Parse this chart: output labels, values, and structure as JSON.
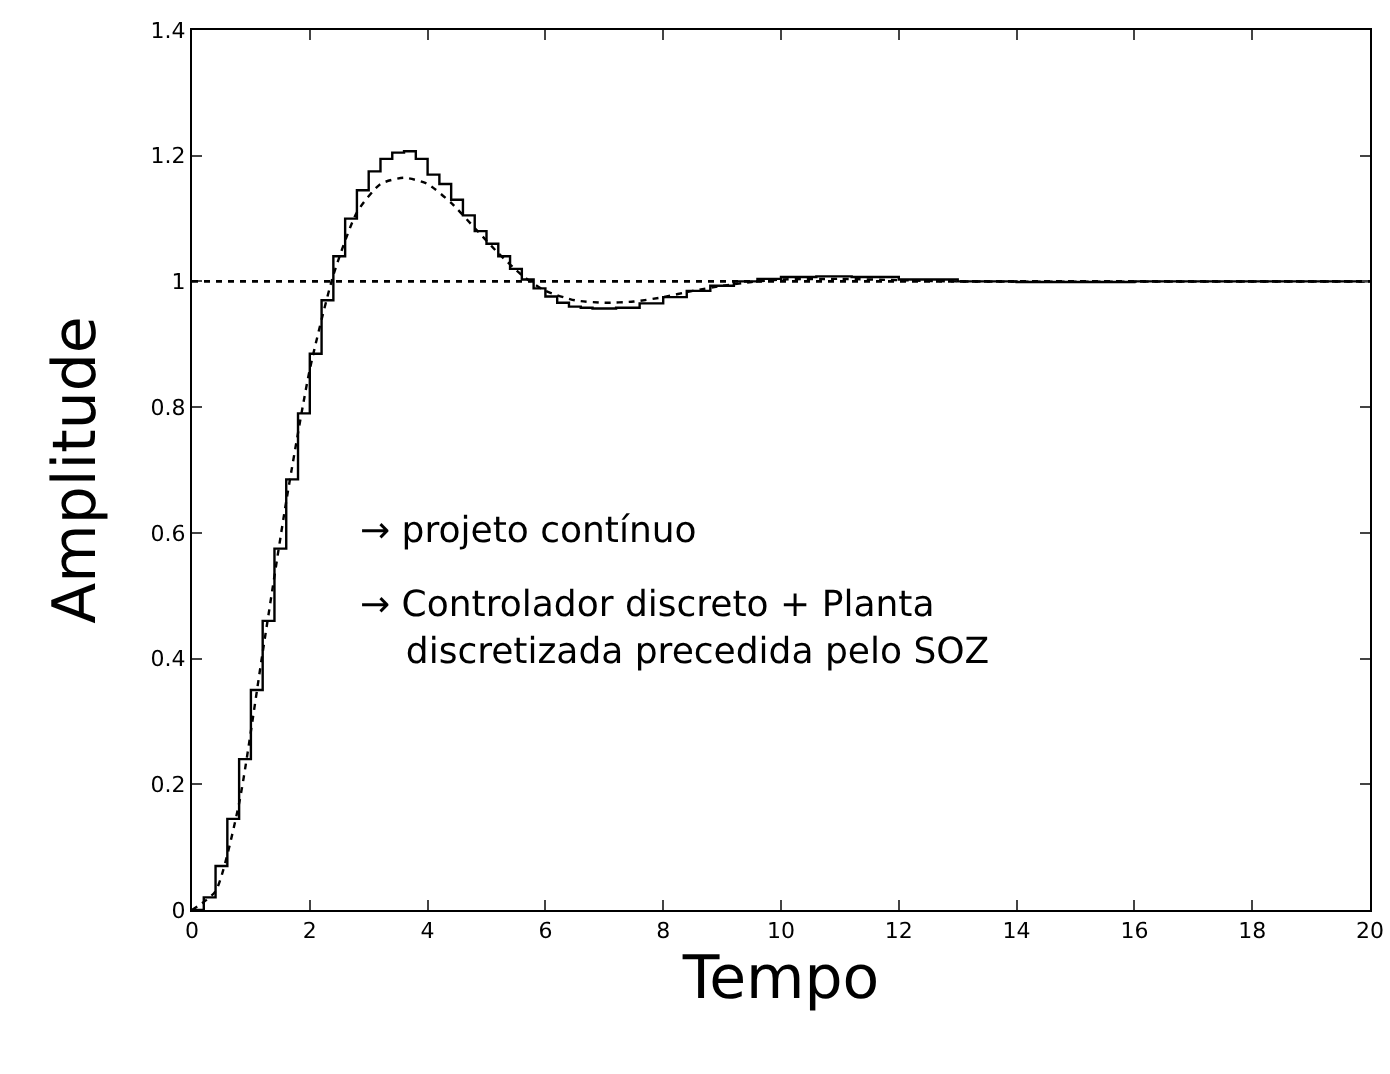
{
  "chart_data": {
    "type": "step",
    "xlabel": "Tempo",
    "ylabel": "Amplitude",
    "xlim": [
      0,
      20
    ],
    "ylim": [
      0,
      1.4
    ],
    "xticks": [
      0,
      2,
      4,
      6,
      8,
      10,
      12,
      14,
      16,
      18,
      20
    ],
    "yticks": [
      0,
      0.2,
      0.4,
      0.6,
      0.8,
      1,
      1.2,
      1.4
    ],
    "grid": false,
    "series": [
      {
        "color": "#000000",
        "line_style": "solid",
        "x": [
          0,
          0.2,
          0.4,
          0.6,
          0.8,
          1.0,
          1.2,
          1.4,
          1.6,
          1.8,
          2.0,
          2.2,
          2.4,
          2.6,
          2.8,
          3.0,
          3.2,
          3.4,
          3.6,
          3.8,
          4.0,
          4.2,
          4.4,
          4.6,
          4.8,
          5.0,
          5.2,
          5.4,
          5.6,
          5.8,
          6.0,
          6.2,
          6.4,
          6.6,
          6.8,
          7.0,
          7.2,
          7.6,
          8.0,
          8.4,
          8.8,
          9.2,
          9.6,
          10.0,
          10.6,
          11.2,
          12.0,
          13.0,
          14.0,
          16.0,
          20.0
        ],
        "values": [
          0,
          0.02,
          0.07,
          0.145,
          0.24,
          0.35,
          0.46,
          0.575,
          0.685,
          0.79,
          0.885,
          0.97,
          1.04,
          1.1,
          1.145,
          1.175,
          1.195,
          1.205,
          1.207,
          1.195,
          1.17,
          1.155,
          1.13,
          1.105,
          1.08,
          1.06,
          1.04,
          1.02,
          1.003,
          0.989,
          0.976,
          0.966,
          0.96,
          0.958,
          0.957,
          0.957,
          0.958,
          0.965,
          0.975,
          0.985,
          0.993,
          1.0,
          1.004,
          1.007,
          1.008,
          1.007,
          1.003,
          1.0,
          0.999,
          1.0,
          1.0
        ]
      },
      {
        "type": "line",
        "color": "#000000",
        "line_style": "dotted",
        "x": [
          0,
          0.4,
          0.8,
          1.2,
          1.6,
          2.0,
          2.4,
          2.8,
          3.2,
          3.6,
          4.0,
          4.4,
          4.8,
          5.2,
          5.6,
          6.0,
          6.5,
          7,
          7.5,
          8,
          8.5,
          9,
          9.5,
          10,
          11,
          12,
          13,
          20
        ],
        "values": [
          0,
          0.03,
          0.17,
          0.41,
          0.65,
          0.86,
          1.01,
          1.11,
          1.155,
          1.165,
          1.155,
          1.125,
          1.085,
          1.045,
          1.01,
          0.985,
          0.97,
          0.966,
          0.968,
          0.975,
          0.985,
          0.993,
          0.999,
          1.003,
          1.004,
          1.002,
          1.0,
          1.0
        ]
      }
    ],
    "ref_lines": [
      {
        "axis": "y",
        "value": 1,
        "color": "#000000",
        "line_style": "dotted"
      }
    ],
    "annotations": [
      "→ projeto contínuo",
      "→ Controlador discreto + Planta\n    discretizada precedida pelo SOZ"
    ]
  }
}
